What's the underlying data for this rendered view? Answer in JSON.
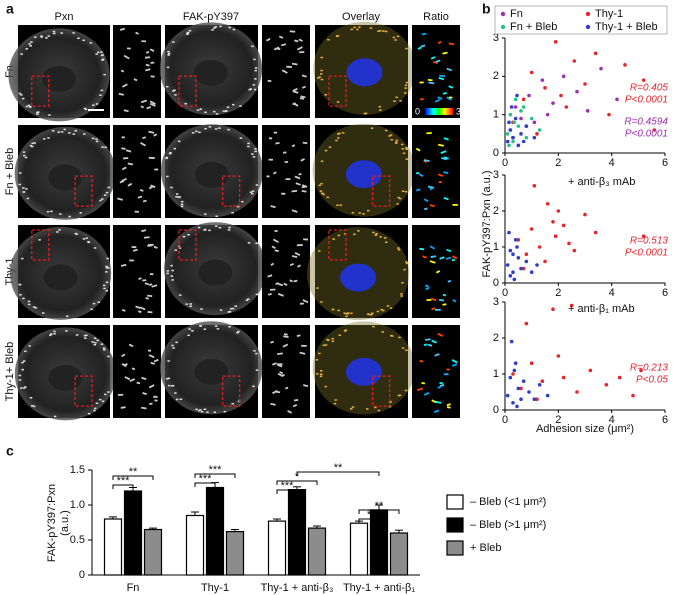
{
  "panel_labels": [
    "a",
    "b",
    "c"
  ],
  "panel_a": {
    "columns": [
      "Pxn",
      "FAK-pY397",
      "Overlay",
      "Ratio"
    ],
    "rows": [
      "Fn",
      "Fn + Bleb",
      "Thy-1",
      "Thy-1+ Bleb"
    ],
    "colorbar": [
      "0",
      "3"
    ]
  },
  "chart_data": [
    {
      "type": "scatter",
      "xlim": [
        0,
        6
      ],
      "xticks": [
        0,
        2,
        4,
        6
      ],
      "ylim": [
        0,
        3
      ],
      "yticks": [
        0,
        1,
        2,
        3
      ],
      "series": [
        {
          "name": "Fn",
          "color": "#9b2fae",
          "x": [
            0.2,
            0.4,
            0.6,
            0.9,
            1.1,
            1.4,
            1.8,
            2.2,
            2.7,
            3.1,
            3.6,
            4.2,
            0.3,
            0.8,
            1.6
          ],
          "values": [
            0.6,
            1.2,
            0.9,
            1.5,
            0.8,
            1.9,
            1.3,
            2.0,
            1.6,
            1.1,
            2.2,
            1.4,
            0.4,
            0.7,
            1.0
          ]
        },
        {
          "name": "Thy-1",
          "color": "#e3262b",
          "x": [
            0.3,
            0.7,
            1.0,
            1.5,
            1.9,
            2.3,
            2.6,
            3.0,
            3.4,
            3.9,
            4.5,
            5.2,
            5.6,
            1.2,
            2.1
          ],
          "values": [
            0.8,
            1.4,
            2.1,
            1.7,
            2.9,
            1.2,
            2.4,
            1.8,
            2.6,
            1.0,
            2.3,
            1.9,
            0.6,
            0.5,
            1.5
          ]
        },
        {
          "name": "Fn + Bleb",
          "color": "#2bbf8a",
          "x": [
            0.1,
            0.2,
            0.3,
            0.4,
            0.5,
            0.6,
            0.8,
            1.0,
            1.3,
            0.15,
            0.35,
            0.7
          ],
          "values": [
            0.5,
            1.0,
            0.3,
            1.4,
            0.7,
            1.1,
            0.4,
            0.9,
            0.6,
            0.2,
            0.8,
            1.2
          ]
        },
        {
          "name": "Thy-1 + Bleb",
          "color": "#2b3fc7",
          "x": [
            0.1,
            0.2,
            0.25,
            0.3,
            0.4,
            0.5,
            0.6,
            0.8,
            1.1,
            0.15,
            0.45,
            0.7
          ],
          "values": [
            0.3,
            0.6,
            1.2,
            0.4,
            0.9,
            0.2,
            0.5,
            0.7,
            0.4,
            0.8,
            1.5,
            0.3
          ]
        }
      ],
      "annotations": [
        {
          "text": "R=0.405",
          "color": "#e3262b"
        },
        {
          "text": "P<0.0001",
          "color": "#e3262b"
        },
        {
          "text": "R=0.4594",
          "color": "#9b2fae"
        },
        {
          "text": "P<0.0001",
          "color": "#9b2fae"
        }
      ]
    },
    {
      "type": "scatter",
      "title": "+ anti-β₃ mAb",
      "y_label": "FAK-pY397:Pxn (a.u.)",
      "xlim": [
        0,
        6
      ],
      "xticks": [
        0,
        2,
        4,
        6
      ],
      "ylim": [
        0,
        3
      ],
      "yticks": [
        0,
        1,
        2,
        3
      ],
      "series": [
        {
          "color": "#e3262b",
          "x": [
            0.5,
            0.8,
            1.0,
            1.3,
            1.6,
            1.9,
            2.2,
            2.6,
            3.0,
            3.4,
            1.1,
            1.5,
            2.0,
            0.7,
            5.2,
            2.4,
            1.8
          ],
          "values": [
            1.2,
            0.8,
            1.5,
            1.0,
            2.2,
            1.3,
            1.6,
            0.9,
            1.9,
            1.4,
            2.7,
            0.6,
            2.0,
            0.4,
            1.3,
            1.1,
            1.7
          ]
        },
        {
          "color": "#2b3fc7",
          "x": [
            0.1,
            0.2,
            0.3,
            0.4,
            0.5,
            0.6,
            0.2,
            0.3,
            0.8,
            1.0,
            0.15,
            0.45,
            0.35,
            1.2
          ],
          "values": [
            0.5,
            0.9,
            0.3,
            1.2,
            0.7,
            0.4,
            0.2,
            0.8,
            0.6,
            0.3,
            1.4,
            1.0,
            0.1,
            0.5
          ]
        }
      ],
      "annotations": [
        {
          "text": "R=0.513",
          "color": "#e3262b"
        },
        {
          "text": "P<0.0001",
          "color": "#e3262b"
        }
      ]
    },
    {
      "type": "scatter",
      "title": "+ anti-β₁ mAb",
      "x_label": "Adhesion size (μm²)",
      "xlim": [
        0,
        6
      ],
      "xticks": [
        0,
        2,
        4,
        6
      ],
      "ylim": [
        0,
        3
      ],
      "yticks": [
        0,
        1,
        2,
        3
      ],
      "series": [
        {
          "color": "#e3262b",
          "x": [
            0.3,
            0.6,
            1.0,
            1.4,
            1.8,
            2.2,
            2.7,
            3.2,
            3.8,
            4.3,
            4.8,
            5.1,
            2.0,
            0.8,
            1.2,
            2.5
          ],
          "values": [
            1.0,
            0.6,
            1.3,
            0.8,
            2.8,
            0.9,
            0.5,
            1.1,
            0.7,
            0.9,
            0.4,
            1.1,
            1.5,
            2.4,
            0.3,
            2.9
          ]
        },
        {
          "color": "#2b3fc7",
          "x": [
            0.1,
            0.2,
            0.3,
            0.4,
            0.5,
            0.6,
            0.7,
            0.9,
            1.1,
            1.3,
            0.25,
            0.45,
            0.35,
            1.6
          ],
          "values": [
            0.4,
            0.9,
            0.2,
            1.3,
            0.6,
            0.3,
            0.8,
            0.5,
            0.3,
            0.7,
            1.9,
            0.1,
            1.1,
            0.4
          ]
        }
      ],
      "annotations": [
        {
          "text": "R=0.213",
          "color": "#e3262b"
        },
        {
          "text": "P<0.05",
          "color": "#e3262b"
        }
      ]
    },
    {
      "type": "bar",
      "y_label": [
        "FAK-pY397:Pxn",
        "(a.u.)"
      ],
      "categories": [
        "Fn",
        "Thy-1",
        "Thy-1 + anti-β₃",
        "Thy-1 + anti-β₁"
      ],
      "ylim": [
        0,
        1.5
      ],
      "yticks": [
        0,
        0.5,
        {
          "value": 1.0,
          "label": "1.0"
        },
        1.5
      ],
      "series": [
        {
          "name": "– Bleb (<1 μm²)",
          "color": "#ffffff",
          "values": [
            0.8,
            0.85,
            0.77,
            0.74
          ],
          "errors": [
            0.03,
            0.05,
            0.03,
            0.03
          ]
        },
        {
          "name": "– Bleb (>1 μm²)",
          "color": "#000000",
          "values": [
            1.2,
            1.25,
            1.22,
            0.93
          ],
          "errors": [
            0.05,
            0.07,
            0.04,
            0.07
          ]
        },
        {
          "name": "+ Bleb",
          "color": "#8c8c8c",
          "values": [
            0.65,
            0.62,
            0.67,
            0.6
          ],
          "errors": [
            0.02,
            0.03,
            0.03,
            0.04
          ]
        }
      ],
      "significance": [
        "**",
        "***",
        "***",
        "***",
        "*",
        "***",
        "**",
        "**",
        "*"
      ]
    }
  ]
}
